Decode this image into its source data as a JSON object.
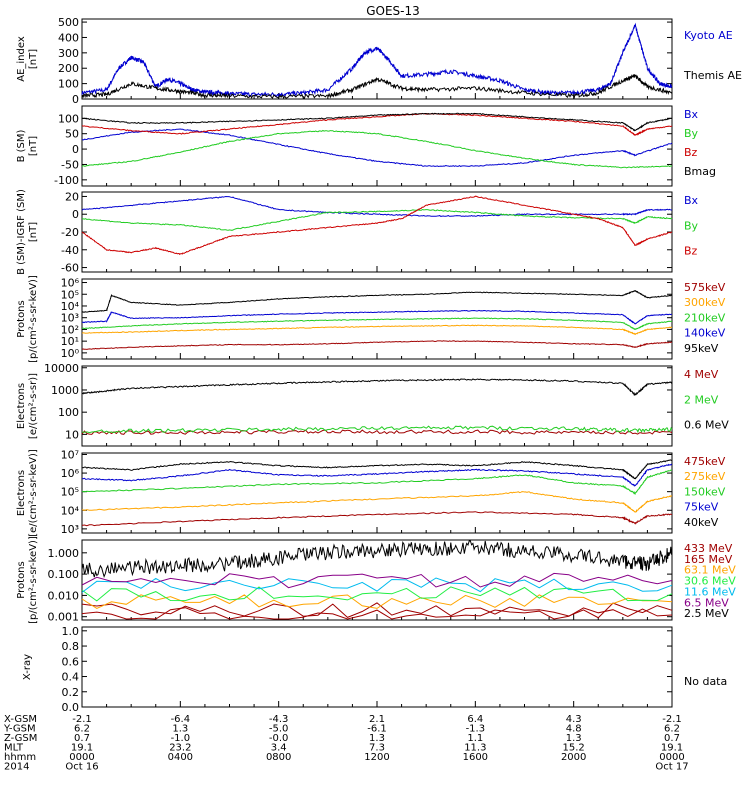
{
  "title": "GOES-13",
  "colors": {
    "black": "#000000",
    "blue": "#0000d0",
    "green": "#22cc22",
    "red": "#cc0000",
    "orange": "#ffa500",
    "darkred": "#a00000",
    "lightgreen": "#22ee44",
    "cyan": "#00bbee",
    "yellow": "#eeee00",
    "purple": "#880088"
  },
  "chart_data": [
    {
      "panel": "ae-index",
      "type": "line",
      "ylabel": "AE_index\n[nT]",
      "yticks": [
        "0",
        "100",
        "200",
        "300",
        "400",
        "500"
      ],
      "ylim": [
        0,
        520
      ],
      "yscale": "linear",
      "series": [
        {
          "name": "Kyoto AE",
          "color": "blue",
          "x": [
            0,
            1,
            1.5,
            2,
            2.5,
            3,
            3.5,
            4,
            4.5,
            5,
            5.5,
            6,
            7,
            8,
            9,
            10,
            11,
            11.5,
            12,
            12.5,
            13,
            14,
            15,
            16,
            17,
            18,
            19,
            20,
            21,
            21.5,
            22,
            22.5,
            23,
            23.5,
            24
          ],
          "y": [
            40,
            60,
            200,
            270,
            240,
            80,
            130,
            100,
            60,
            45,
            40,
            35,
            30,
            30,
            40,
            60,
            200,
            300,
            330,
            250,
            150,
            160,
            180,
            150,
            120,
            60,
            40,
            40,
            60,
            100,
            300,
            480,
            200,
            100,
            80
          ]
        },
        {
          "name": "Themis AE",
          "color": "black",
          "x": [
            0,
            1,
            2,
            3,
            4,
            5,
            6,
            8,
            10,
            11,
            12,
            13,
            14,
            16,
            18,
            20,
            21,
            22,
            22.5,
            23,
            24
          ],
          "y": [
            20,
            30,
            100,
            70,
            50,
            25,
            20,
            15,
            20,
            60,
            130,
            70,
            60,
            70,
            40,
            20,
            40,
            120,
            150,
            80,
            40
          ]
        }
      ]
    },
    {
      "panel": "b-sm",
      "type": "line",
      "ylabel": "B (SM)\n[nT]",
      "yticks": [
        "-100",
        "-50",
        "0",
        "50",
        "100"
      ],
      "ylim": [
        -120,
        140
      ],
      "yscale": "linear",
      "series": [
        {
          "name": "Bx",
          "color": "blue",
          "x": [
            0,
            2,
            4,
            6,
            8,
            10,
            12,
            14,
            16,
            18,
            20,
            22,
            22.5,
            24
          ],
          "y": [
            30,
            55,
            65,
            45,
            15,
            -15,
            -40,
            -55,
            -55,
            -45,
            -20,
            -5,
            -20,
            20
          ]
        },
        {
          "name": "By",
          "color": "green",
          "x": [
            0,
            2,
            4,
            6,
            8,
            10,
            12,
            14,
            16,
            18,
            20,
            22,
            24
          ],
          "y": [
            -55,
            -40,
            -10,
            25,
            50,
            60,
            50,
            25,
            -5,
            -30,
            -50,
            -60,
            -55
          ]
        },
        {
          "name": "Bz",
          "color": "red",
          "x": [
            0,
            2,
            4,
            6,
            8,
            10,
            12,
            14,
            16,
            18,
            20,
            22,
            22.5,
            23,
            24
          ],
          "y": [
            75,
            60,
            50,
            65,
            80,
            95,
            105,
            115,
            110,
            100,
            90,
            75,
            45,
            65,
            75
          ]
        },
        {
          "name": "Bmag",
          "color": "black",
          "x": [
            0,
            2,
            4,
            6,
            8,
            10,
            12,
            14,
            16,
            18,
            20,
            22,
            22.5,
            23,
            24
          ],
          "y": [
            100,
            85,
            85,
            90,
            95,
            100,
            110,
            115,
            115,
            105,
            95,
            85,
            60,
            85,
            100
          ]
        }
      ]
    },
    {
      "panel": "b-sm-igrf",
      "type": "line",
      "ylabel": "B (SM)-IGRF (SM)\n[nT]",
      "yticks": [
        "-60",
        "-40",
        "-20",
        "0",
        "20"
      ],
      "ylim": [
        -65,
        25
      ],
      "yscale": "linear",
      "series": [
        {
          "name": "Bx",
          "color": "blue",
          "x": [
            0,
            2,
            4,
            6,
            8,
            10,
            12,
            14,
            16,
            18,
            20,
            22,
            22.5,
            23,
            24
          ],
          "y": [
            5,
            10,
            15,
            20,
            5,
            2,
            0,
            -2,
            -2,
            0,
            0,
            0,
            0,
            5,
            5
          ]
        },
        {
          "name": "By",
          "color": "green",
          "x": [
            0,
            2,
            4,
            6,
            8,
            10,
            12,
            14,
            16,
            18,
            20,
            22,
            22.5,
            23,
            24
          ],
          "y": [
            -5,
            -10,
            -12,
            -18,
            -8,
            2,
            3,
            5,
            2,
            -2,
            -4,
            -5,
            -10,
            -3,
            -5
          ]
        },
        {
          "name": "Bz",
          "color": "red",
          "x": [
            0,
            1,
            2,
            3,
            4,
            5,
            6,
            8,
            10,
            12,
            13,
            14,
            16,
            18,
            20,
            21,
            22,
            22.5,
            23,
            24
          ],
          "y": [
            -20,
            -40,
            -43,
            -38,
            -45,
            -35,
            -25,
            -20,
            -15,
            -10,
            -5,
            10,
            20,
            10,
            0,
            -5,
            -15,
            -35,
            -28,
            -20
          ]
        }
      ]
    },
    {
      "panel": "protons-low",
      "type": "line",
      "ylabel": "Protons\n[p/(cm²-s-sr-keV)]",
      "yticks": [
        "10⁰",
        "10¹",
        "10²",
        "10³",
        "10⁴",
        "10⁵",
        "10⁶"
      ],
      "ylim": [
        0.3,
        2000000
      ],
      "yscale": "log",
      "series": [
        {
          "name": "575keV",
          "color": "darkred",
          "x": [
            0,
            2,
            4,
            6,
            8,
            10,
            12,
            14,
            16,
            18,
            20,
            22,
            22.5,
            23,
            24
          ],
          "y": [
            2,
            3,
            4,
            5,
            5,
            6,
            8,
            10,
            10,
            8,
            6,
            5,
            3,
            6,
            8
          ]
        },
        {
          "name": "300keV",
          "color": "orange",
          "x": [
            0,
            2,
            4,
            6,
            8,
            10,
            12,
            14,
            16,
            18,
            20,
            22,
            22.5,
            23,
            24
          ],
          "y": [
            50,
            60,
            80,
            100,
            120,
            150,
            180,
            200,
            220,
            200,
            150,
            100,
            40,
            100,
            150
          ]
        },
        {
          "name": "210keV",
          "color": "green",
          "x": [
            0,
            2,
            4,
            6,
            8,
            10,
            12,
            14,
            16,
            18,
            20,
            22,
            22.5,
            23,
            24
          ],
          "y": [
            120,
            200,
            300,
            400,
            500,
            600,
            700,
            800,
            900,
            800,
            600,
            400,
            100,
            300,
            500
          ]
        },
        {
          "name": "140keV",
          "color": "blue",
          "x": [
            0,
            1,
            1.2,
            2,
            4,
            6,
            8,
            10,
            12,
            14,
            16,
            18,
            20,
            22,
            22.5,
            23,
            24
          ],
          "y": [
            400,
            500,
            3000,
            900,
            1000,
            1500,
            2000,
            2500,
            3000,
            3500,
            4000,
            3500,
            2500,
            1800,
            300,
            1500,
            2000
          ]
        },
        {
          "name": "95keV",
          "color": "black",
          "x": [
            0,
            1,
            1.2,
            2,
            4,
            6,
            8,
            10,
            12,
            14,
            16,
            18,
            20,
            22,
            22.5,
            23,
            24
          ],
          "y": [
            3000,
            4000,
            80000,
            20000,
            12000,
            20000,
            40000,
            60000,
            80000,
            100000,
            150000,
            120000,
            100000,
            80000,
            200000,
            50000,
            80000
          ]
        }
      ]
    },
    {
      "panel": "electrons-high",
      "type": "line",
      "ylabel": "Electrons\n[e/(cm²-s-sr)]",
      "yticks": [
        "10",
        "100",
        "1000",
        "10000"
      ],
      "ylim": [
        3,
        12000
      ],
      "yscale": "log",
      "series": [
        {
          "name": "4 MeV",
          "color": "darkred",
          "x": [
            0,
            4,
            8,
            12,
            16,
            20,
            24
          ],
          "y": [
            12,
            12,
            13,
            13,
            13,
            12,
            12
          ]
        },
        {
          "name": "2 MeV",
          "color": "green",
          "x": [
            0,
            4,
            8,
            12,
            16,
            20,
            22.5,
            24
          ],
          "y": [
            14,
            15,
            17,
            19,
            20,
            18,
            15,
            17
          ]
        },
        {
          "name": "0.6 MeV",
          "color": "black",
          "x": [
            0,
            1,
            2,
            4,
            6,
            8,
            10,
            12,
            14,
            16,
            18,
            20,
            22,
            22.5,
            23,
            24
          ],
          "y": [
            700,
            900,
            1200,
            1400,
            1700,
            2000,
            2300,
            2600,
            2800,
            3000,
            2800,
            2500,
            2000,
            600,
            1800,
            2200
          ]
        }
      ]
    },
    {
      "panel": "electrons-low",
      "type": "line",
      "ylabel": "Electrons\n[e/(cm²-s-sr-keV)]",
      "yticks": [
        "10³",
        "10⁴",
        "10⁵",
        "10⁶",
        "10⁷"
      ],
      "ylim": [
        600,
        12000000
      ],
      "yscale": "log",
      "series": [
        {
          "name": "475keV",
          "color": "darkred",
          "x": [
            0,
            4,
            8,
            12,
            16,
            20,
            22,
            22.5,
            23,
            24
          ],
          "y": [
            1500,
            2500,
            4000,
            6000,
            8000,
            6000,
            4000,
            2000,
            5000,
            6000
          ]
        },
        {
          "name": "275keV",
          "color": "orange",
          "x": [
            0,
            4,
            8,
            12,
            16,
            18,
            20,
            22,
            22.5,
            23,
            24
          ],
          "y": [
            10000,
            15000,
            25000,
            40000,
            60000,
            100000,
            40000,
            25000,
            8000,
            30000,
            60000
          ]
        },
        {
          "name": "150keV",
          "color": "green",
          "x": [
            0,
            4,
            8,
            12,
            16,
            18,
            20,
            22,
            22.5,
            23,
            24
          ],
          "y": [
            100000,
            150000,
            250000,
            300000,
            500000,
            800000,
            300000,
            200000,
            80000,
            600000,
            1500000
          ]
        },
        {
          "name": "75keV",
          "color": "blue",
          "x": [
            0,
            2,
            4,
            6,
            8,
            10,
            12,
            14,
            16,
            18,
            20,
            22,
            22.5,
            23,
            24
          ],
          "y": [
            500000,
            400000,
            700000,
            1500000,
            800000,
            700000,
            900000,
            1200000,
            1500000,
            1300000,
            900000,
            600000,
            200000,
            1500000,
            3000000
          ]
        },
        {
          "name": "40keV",
          "color": "black",
          "x": [
            0,
            2,
            4,
            6,
            8,
            10,
            12,
            14,
            16,
            18,
            20,
            22,
            22.5,
            23,
            24
          ],
          "y": [
            2000000,
            1500000,
            3000000,
            4000000,
            2500000,
            2000000,
            2500000,
            3000000,
            2500000,
            4000000,
            2500000,
            1500000,
            500000,
            3000000,
            5000000
          ]
        }
      ]
    },
    {
      "panel": "protons-high",
      "type": "line",
      "ylabel": "Protons\n[p/(cm²-s-sr-keV)]",
      "yticks": [
        "0.001",
        "0.010",
        "0.100",
        "1.000"
      ],
      "ylim": [
        0.0007,
        4
      ],
      "yscale": "log",
      "series": [
        {
          "name": "433 MeV",
          "color": "darkred",
          "x": [
            0,
            24
          ],
          "y": [
            0.0012,
            0.0012
          ]
        },
        {
          "name": "165 MeV",
          "color": "darkred",
          "x": [
            0,
            24
          ],
          "y": [
            0.002,
            0.002
          ]
        },
        {
          "name": "63.1 MeV",
          "color": "orange",
          "x": [
            0,
            24
          ],
          "y": [
            0.005,
            0.005
          ]
        },
        {
          "name": "30.6 MeV",
          "color": "lightgreen",
          "x": [
            0,
            24
          ],
          "y": [
            0.012,
            0.012
          ]
        },
        {
          "name": "11.6 MeV",
          "color": "cyan",
          "x": [
            0,
            24
          ],
          "y": [
            0.03,
            0.03
          ]
        },
        {
          "name": "6.5 MeV",
          "color": "purple",
          "x": [
            0,
            24
          ],
          "y": [
            0.05,
            0.05
          ]
        },
        {
          "name": "2.5 MeV",
          "color": "black",
          "x": [
            0,
            2,
            4,
            6,
            8,
            10,
            12,
            14,
            16,
            18,
            20,
            22,
            23,
            24
          ],
          "y": [
            0.15,
            0.2,
            0.25,
            0.3,
            0.6,
            1.0,
            1.3,
            1.5,
            1.8,
            1.2,
            0.8,
            0.4,
            0.3,
            1.0
          ]
        }
      ]
    },
    {
      "panel": "x-ray",
      "type": "line",
      "ylabel": "X-ray",
      "yticks": [
        "0.0",
        "0.2",
        "0.4",
        "0.6",
        "0.8",
        "1.0"
      ],
      "ylim": [
        0,
        1.05
      ],
      "yscale": "linear",
      "note": "No data",
      "series": []
    }
  ],
  "orbit_table": {
    "row_labels": [
      "X-GSM",
      "Y-GSM",
      "Z-GSM",
      "MLT",
      "hhmm",
      "2014"
    ],
    "columns": [
      [
        "-2.1",
        "6.2",
        "0.7",
        "19.1",
        "0000",
        "Oct 16"
      ],
      [
        "-6.4",
        "1.3",
        "-1.0",
        "23.2",
        "0400",
        ""
      ],
      [
        "-4.3",
        "-5.0",
        "-0.0",
        "3.4",
        "0800",
        ""
      ],
      [
        "2.1",
        "-6.1",
        "1.3",
        "7.3",
        "1200",
        ""
      ],
      [
        "6.4",
        "-1.3",
        "1.1",
        "11.3",
        "1600",
        ""
      ],
      [
        "4.3",
        "4.8",
        "1.3",
        "15.2",
        "2000",
        ""
      ],
      [
        "-2.1",
        "6.2",
        "0.7",
        "19.1",
        "0000",
        "Oct 17"
      ]
    ]
  }
}
